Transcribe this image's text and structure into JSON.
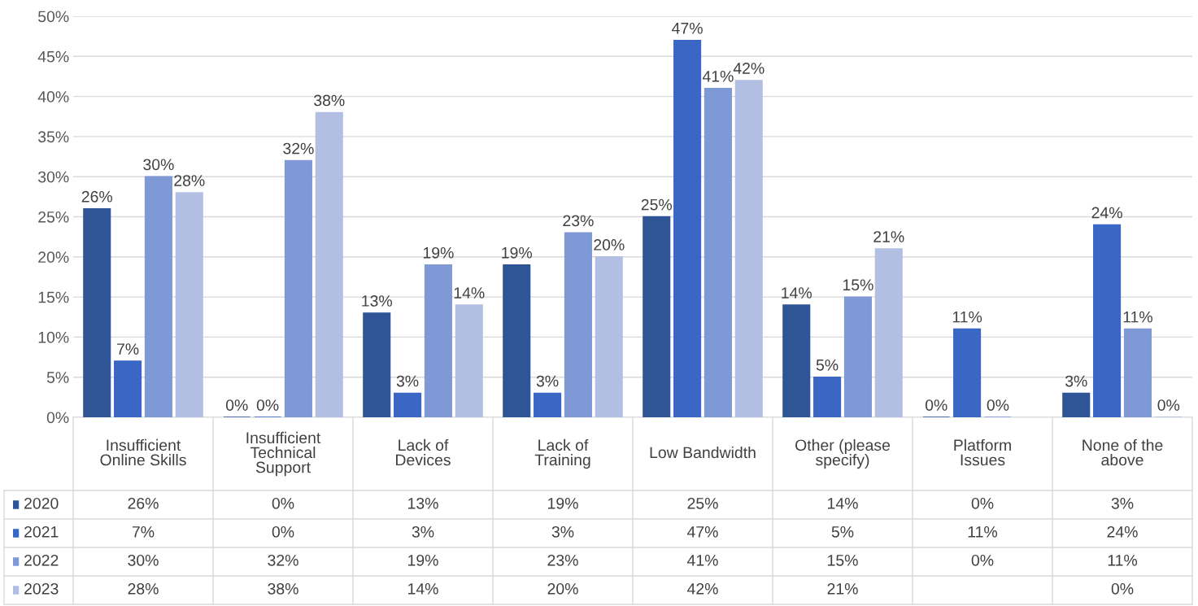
{
  "chart_data": {
    "type": "bar",
    "categories": [
      "Insufficient Online Skills",
      "Insufficient Technical Support",
      "Lack of Devices",
      "Lack of Training",
      "Low Bandwidth",
      "Other (please specify)",
      "Platform Issues",
      "None of the above"
    ],
    "series": [
      {
        "name": "2020",
        "color": "#2f5597",
        "values": [
          26,
          0,
          13,
          19,
          25,
          14,
          0,
          3
        ],
        "value_labels": [
          "26%",
          "0%",
          "13%",
          "19%",
          "25%",
          "14%",
          "0%",
          "3%"
        ]
      },
      {
        "name": "2021",
        "color": "#3a66c4",
        "values": [
          7,
          0,
          3,
          3,
          47,
          5,
          11,
          24
        ],
        "value_labels": [
          "7%",
          "0%",
          "3%",
          "3%",
          "47%",
          "5%",
          "11%",
          "24%"
        ]
      },
      {
        "name": "2022",
        "color": "#7f98d6",
        "values": [
          30,
          32,
          19,
          23,
          41,
          15,
          0,
          11
        ],
        "value_labels": [
          "30%",
          "32%",
          "19%",
          "23%",
          "41%",
          "15%",
          "0%",
          "11%"
        ]
      },
      {
        "name": "2023",
        "color": "#b3bfe2",
        "values": [
          28,
          38,
          14,
          20,
          42,
          21,
          null,
          0
        ],
        "value_labels": [
          "28%",
          "38%",
          "14%",
          "20%",
          "42%",
          "21%",
          null,
          "0%"
        ]
      }
    ],
    "ylim": [
      0,
      50
    ],
    "yticks": [
      {
        "value": 0,
        "label": "0%"
      },
      {
        "value": 5,
        "label": "5%"
      },
      {
        "value": 10,
        "label": "10%"
      },
      {
        "value": 15,
        "label": "15%"
      },
      {
        "value": 20,
        "label": "20%"
      },
      {
        "value": 25,
        "label": "25%"
      },
      {
        "value": 30,
        "label": "30%"
      },
      {
        "value": 35,
        "label": "35%"
      },
      {
        "value": 40,
        "label": "40%"
      },
      {
        "value": 45,
        "label": "45%"
      },
      {
        "value": 50,
        "label": "50%"
      }
    ],
    "grid": "y",
    "legend": "bottom left"
  }
}
